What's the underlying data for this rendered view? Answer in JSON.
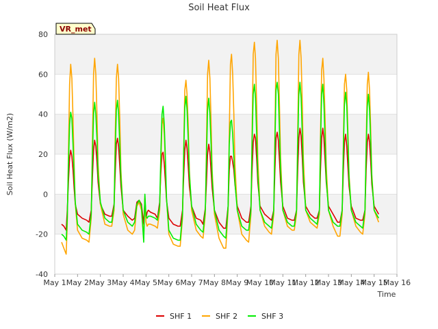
{
  "chart_data": {
    "type": "line",
    "title": "Soil Heat Flux",
    "xlabel": "Time",
    "ylabel": "Soil Heat Flux (W/m2)",
    "ylim": [
      -40,
      80
    ],
    "yticks": [
      -40,
      -20,
      0,
      20,
      40,
      60,
      80
    ],
    "xlim": [
      1,
      16
    ],
    "xticks": [
      1,
      2,
      3,
      4,
      5,
      6,
      7,
      8,
      9,
      10,
      11,
      12,
      13,
      14,
      15,
      16
    ],
    "xtick_labels": [
      "May 1",
      "May 2",
      "May 3",
      "May 4",
      "May 5",
      "May 6",
      "May 7",
      "May 8",
      "May 9",
      "May 10",
      "May 11",
      "May 12",
      "May 13",
      "May 14",
      "May 15",
      "May 16"
    ],
    "background_bands": [
      [
        -20,
        0
      ],
      [
        20,
        40
      ],
      [
        60,
        80
      ]
    ],
    "annotation": "VR_met",
    "legend_position": "bottom-center",
    "series": [
      {
        "name": "SHF 1",
        "color": "#dd0000",
        "x": [
          1.3,
          1.4,
          1.5,
          1.55,
          1.6,
          1.65,
          1.7,
          1.75,
          1.8,
          1.85,
          1.9,
          2.0,
          2.2,
          2.4,
          2.5,
          2.6,
          2.65,
          2.7,
          2.75,
          2.8,
          2.85,
          2.9,
          3.0,
          3.2,
          3.4,
          3.5,
          3.6,
          3.65,
          3.7,
          3.75,
          3.8,
          3.85,
          3.9,
          4.0,
          4.2,
          4.4,
          4.5,
          4.6,
          4.7,
          4.8,
          4.9,
          4.95,
          5.0,
          5.05,
          5.1,
          5.2,
          5.4,
          5.5,
          5.6,
          5.65,
          5.7,
          5.75,
          5.8,
          5.85,
          5.9,
          6.0,
          6.2,
          6.4,
          6.5,
          6.6,
          6.65,
          6.7,
          6.75,
          6.8,
          6.85,
          6.9,
          7.0,
          7.2,
          7.4,
          7.5,
          7.6,
          7.65,
          7.7,
          7.75,
          7.8,
          7.85,
          7.9,
          8.0,
          8.2,
          8.4,
          8.5,
          8.6,
          8.65,
          8.7,
          8.75,
          8.8,
          8.85,
          8.9,
          9.0,
          9.2,
          9.4,
          9.5,
          9.6,
          9.65,
          9.7,
          9.75,
          9.8,
          9.85,
          9.9,
          10.0,
          10.2,
          10.4,
          10.5,
          10.6,
          10.65,
          10.7,
          10.75,
          10.8,
          10.85,
          10.9,
          11.0,
          11.2,
          11.4,
          11.5,
          11.6,
          11.65,
          11.7,
          11.75,
          11.8,
          11.85,
          11.9,
          12.0,
          12.2,
          12.4,
          12.5,
          12.6,
          12.65,
          12.7,
          12.75,
          12.8,
          12.85,
          12.9,
          13.0,
          13.2,
          13.4,
          13.5,
          13.6,
          13.65,
          13.7,
          13.75,
          13.8,
          13.85,
          13.9,
          14.0,
          14.2,
          14.4,
          14.5,
          14.6,
          14.65,
          14.7,
          14.75,
          14.8,
          14.85,
          14.9,
          15.0,
          15.2
        ],
        "y": [
          -15,
          -16,
          -18,
          -8,
          6,
          18,
          22,
          19,
          12,
          3,
          -5,
          -10,
          -12,
          -13,
          -14,
          -8,
          8,
          22,
          27,
          24,
          16,
          6,
          -5,
          -10,
          -11,
          -11,
          -5,
          10,
          25,
          28,
          24,
          14,
          4,
          -8,
          -11,
          -13,
          -12,
          -4,
          -3,
          -5,
          -15,
          -2,
          -12,
          -9,
          -8,
          -9,
          -10,
          -12,
          -4,
          10,
          20,
          21,
          15,
          6,
          -3,
          -12,
          -15,
          -16,
          -16,
          -8,
          8,
          22,
          27,
          23,
          14,
          4,
          -6,
          -12,
          -13,
          -15,
          -7,
          6,
          20,
          25,
          21,
          12,
          3,
          -8,
          -14,
          -17,
          -17,
          -6,
          12,
          19,
          19,
          16,
          12,
          5,
          -6,
          -12,
          -14,
          -14,
          -6,
          12,
          26,
          30,
          28,
          18,
          6,
          -6,
          -10,
          -12,
          -13,
          -8,
          12,
          28,
          31,
          27,
          17,
          6,
          -6,
          -12,
          -13,
          -13,
          -8,
          12,
          28,
          33,
          29,
          18,
          6,
          -6,
          -10,
          -12,
          -12,
          -8,
          12,
          28,
          33,
          28,
          17,
          6,
          -6,
          -10,
          -14,
          -14,
          -8,
          12,
          26,
          30,
          24,
          14,
          4,
          -6,
          -12,
          -13,
          -13,
          -8,
          12,
          26,
          30,
          26,
          16,
          5,
          -6,
          -10
        ]
      },
      {
        "name": "SHF 2",
        "color": "#ffa500",
        "x": [
          1.3,
          1.4,
          1.5,
          1.55,
          1.6,
          1.65,
          1.7,
          1.75,
          1.8,
          1.85,
          1.9,
          2.0,
          2.2,
          2.4,
          2.5,
          2.6,
          2.65,
          2.7,
          2.75,
          2.8,
          2.85,
          2.9,
          3.0,
          3.2,
          3.4,
          3.5,
          3.6,
          3.65,
          3.7,
          3.75,
          3.8,
          3.85,
          3.9,
          4.0,
          4.2,
          4.4,
          4.5,
          4.6,
          4.7,
          4.8,
          4.9,
          4.95,
          5.0,
          5.05,
          5.1,
          5.2,
          5.4,
          5.5,
          5.6,
          5.65,
          5.7,
          5.75,
          5.8,
          5.85,
          5.9,
          6.0,
          6.2,
          6.4,
          6.5,
          6.6,
          6.65,
          6.7,
          6.75,
          6.8,
          6.85,
          6.9,
          7.0,
          7.2,
          7.4,
          7.5,
          7.6,
          7.65,
          7.7,
          7.75,
          7.8,
          7.85,
          7.9,
          8.0,
          8.2,
          8.4,
          8.5,
          8.6,
          8.65,
          8.7,
          8.75,
          8.8,
          8.85,
          8.9,
          9.0,
          9.2,
          9.4,
          9.5,
          9.6,
          9.65,
          9.7,
          9.75,
          9.8,
          9.85,
          9.9,
          10.0,
          10.2,
          10.4,
          10.5,
          10.6,
          10.65,
          10.7,
          10.75,
          10.8,
          10.85,
          10.9,
          11.0,
          11.2,
          11.4,
          11.5,
          11.6,
          11.65,
          11.7,
          11.75,
          11.8,
          11.85,
          11.9,
          12.0,
          12.2,
          12.4,
          12.5,
          12.6,
          12.65,
          12.7,
          12.75,
          12.8,
          12.85,
          12.9,
          13.0,
          13.2,
          13.4,
          13.5,
          13.6,
          13.65,
          13.7,
          13.75,
          13.8,
          13.85,
          13.9,
          14.0,
          14.2,
          14.4,
          14.5,
          14.6,
          14.65,
          14.7,
          14.75,
          14.8,
          14.85,
          14.9,
          15.0,
          15.2
        ],
        "y": [
          -24,
          -27,
          -30,
          -15,
          20,
          55,
          65,
          58,
          38,
          15,
          -5,
          -18,
          -22,
          -23,
          -24,
          -12,
          25,
          60,
          68,
          60,
          40,
          15,
          -5,
          -15,
          -16,
          -16,
          -8,
          28,
          58,
          65,
          58,
          38,
          12,
          -10,
          -18,
          -20,
          -18,
          -6,
          -4,
          -8,
          -22,
          -1,
          -14,
          -16,
          -15,
          -15,
          -16,
          -17,
          -8,
          15,
          35,
          38,
          30,
          15,
          -2,
          -20,
          -25,
          -26,
          -26,
          -12,
          20,
          52,
          57,
          50,
          35,
          12,
          -8,
          -18,
          -21,
          -22,
          -10,
          25,
          60,
          67,
          58,
          38,
          12,
          -10,
          -22,
          -27,
          -27,
          -8,
          30,
          65,
          70,
          60,
          40,
          15,
          -8,
          -20,
          -23,
          -24,
          -10,
          30,
          70,
          76,
          68,
          45,
          18,
          -8,
          -16,
          -19,
          -20,
          -10,
          30,
          70,
          77,
          68,
          45,
          18,
          -8,
          -16,
          -18,
          -18,
          -10,
          30,
          70,
          77,
          68,
          45,
          18,
          -8,
          -14,
          -16,
          -17,
          -10,
          30,
          62,
          68,
          58,
          38,
          14,
          -8,
          -16,
          -21,
          -21,
          -10,
          25,
          55,
          60,
          52,
          32,
          10,
          -8,
          -16,
          -19,
          -20,
          -10,
          25,
          55,
          61,
          52,
          32,
          10,
          -8,
          -14
        ]
      },
      {
        "name": "SHF 3",
        "color": "#00ee00",
        "x": [
          1.3,
          1.4,
          1.5,
          1.55,
          1.6,
          1.65,
          1.7,
          1.75,
          1.8,
          1.85,
          1.9,
          2.0,
          2.2,
          2.4,
          2.5,
          2.6,
          2.65,
          2.7,
          2.75,
          2.8,
          2.85,
          2.9,
          3.0,
          3.2,
          3.4,
          3.5,
          3.6,
          3.65,
          3.7,
          3.75,
          3.8,
          3.85,
          3.9,
          4.0,
          4.2,
          4.4,
          4.5,
          4.6,
          4.7,
          4.8,
          4.9,
          4.95,
          5.0,
          5.05,
          5.1,
          5.2,
          5.4,
          5.5,
          5.6,
          5.65,
          5.7,
          5.75,
          5.8,
          5.85,
          5.9,
          6.0,
          6.2,
          6.4,
          6.5,
          6.6,
          6.65,
          6.7,
          6.75,
          6.8,
          6.85,
          6.9,
          7.0,
          7.2,
          7.4,
          7.5,
          7.6,
          7.65,
          7.7,
          7.75,
          7.8,
          7.85,
          7.9,
          8.0,
          8.2,
          8.4,
          8.5,
          8.6,
          8.65,
          8.7,
          8.75,
          8.8,
          8.85,
          8.9,
          9.0,
          9.2,
          9.4,
          9.5,
          9.6,
          9.65,
          9.7,
          9.75,
          9.8,
          9.85,
          9.9,
          10.0,
          10.2,
          10.4,
          10.5,
          10.6,
          10.65,
          10.7,
          10.75,
          10.8,
          10.85,
          10.9,
          11.0,
          11.2,
          11.4,
          11.5,
          11.6,
          11.65,
          11.7,
          11.75,
          11.8,
          11.85,
          11.9,
          12.0,
          12.2,
          12.4,
          12.5,
          12.6,
          12.65,
          12.7,
          12.75,
          12.8,
          12.85,
          12.9,
          13.0,
          13.2,
          13.4,
          13.5,
          13.6,
          13.65,
          13.7,
          13.75,
          13.8,
          13.85,
          13.9,
          14.0,
          14.2,
          14.4,
          14.5,
          14.6,
          14.65,
          14.7,
          14.75,
          14.8,
          14.85,
          14.9,
          15.0,
          15.2
        ],
        "y": [
          -20,
          -21,
          -23,
          -12,
          15,
          35,
          41,
          38,
          25,
          10,
          -4,
          -15,
          -18,
          -19,
          -20,
          -10,
          18,
          40,
          46,
          40,
          28,
          10,
          -4,
          -12,
          -14,
          -14,
          -6,
          20,
          42,
          47,
          40,
          25,
          8,
          -8,
          -14,
          -16,
          -14,
          -5,
          -3,
          -6,
          -24,
          0,
          -11,
          -12,
          -11,
          -11,
          -12,
          -13,
          -6,
          20,
          40,
          44,
          35,
          18,
          -2,
          -18,
          -22,
          -23,
          -23,
          -10,
          18,
          43,
          49,
          42,
          28,
          10,
          -6,
          -15,
          -18,
          -19,
          -8,
          18,
          42,
          48,
          40,
          26,
          8,
          -8,
          -18,
          -21,
          -22,
          -6,
          25,
          36,
          37,
          30,
          18,
          6,
          -8,
          -16,
          -18,
          -18,
          -8,
          25,
          50,
          55,
          48,
          30,
          10,
          -8,
          -14,
          -16,
          -17,
          -8,
          25,
          52,
          56,
          50,
          32,
          12,
          -8,
          -14,
          -16,
          -16,
          -8,
          25,
          50,
          56,
          48,
          30,
          10,
          -8,
          -12,
          -14,
          -15,
          -8,
          25,
          50,
          55,
          45,
          28,
          8,
          -8,
          -14,
          -16,
          -16,
          -8,
          22,
          45,
          51,
          44,
          28,
          8,
          -8,
          -14,
          -16,
          -17,
          -8,
          22,
          44,
          50,
          42,
          26,
          8,
          -8,
          -12
        ]
      }
    ]
  }
}
